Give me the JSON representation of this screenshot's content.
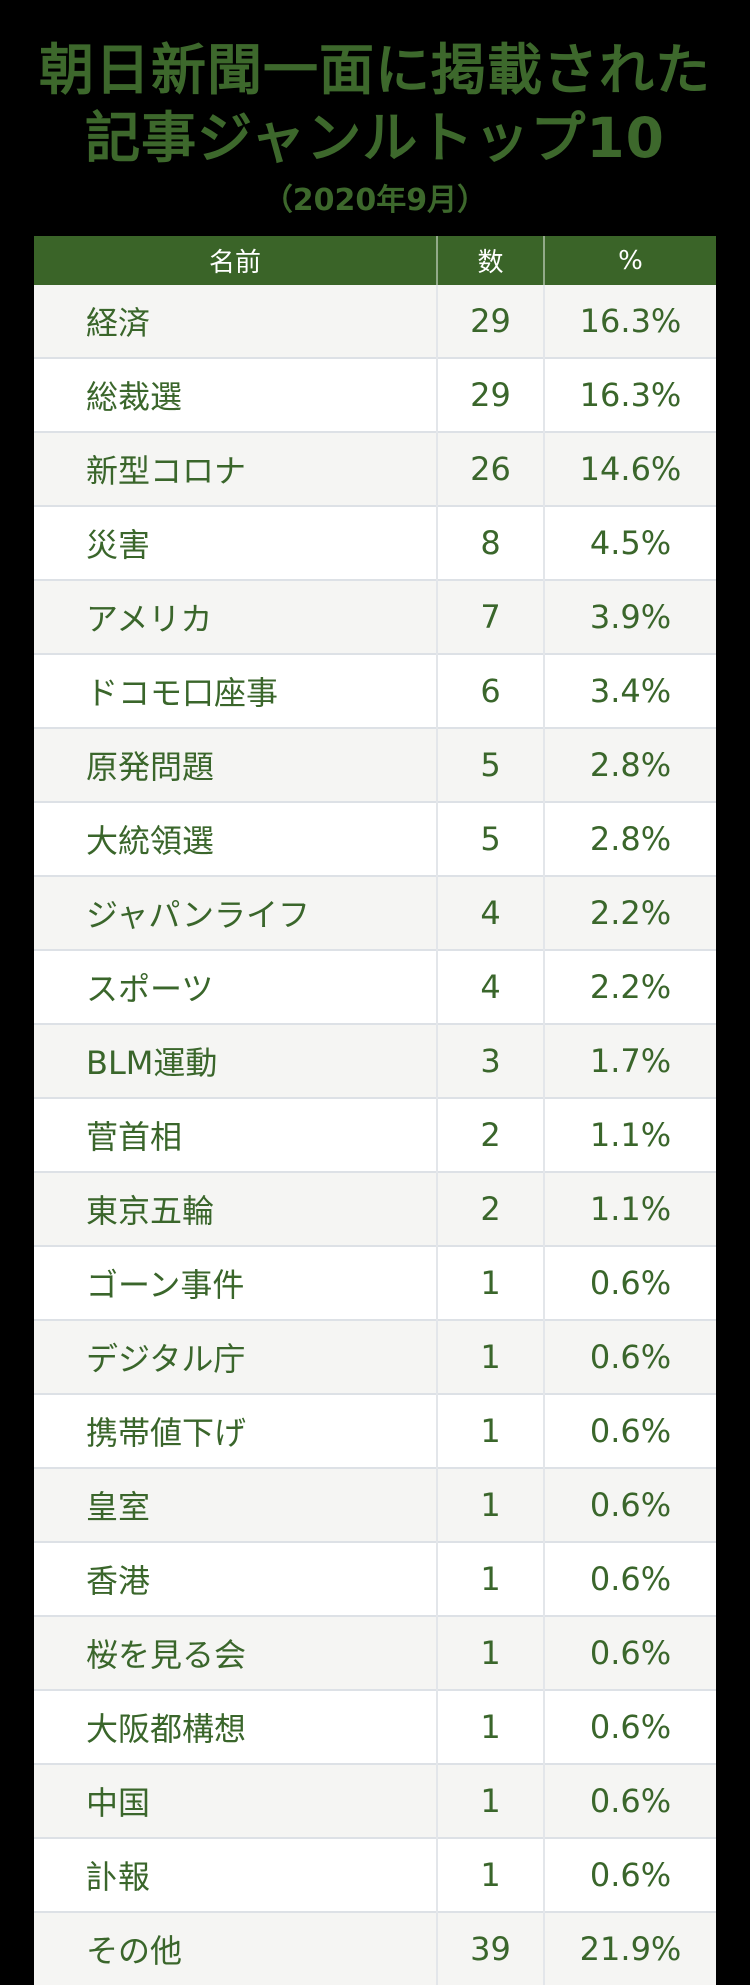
{
  "page": {
    "background_color": "#000000",
    "accent_green": "#3a6428",
    "text_green": "#3a662b"
  },
  "title": {
    "line1": "朝日新聞一面に掲載された",
    "line2": "記事ジャンルトップ10",
    "subtitle": "（2020年9月）",
    "color": "#3d682c"
  },
  "table": {
    "header": {
      "name": "名前",
      "count": "数",
      "percent": "%"
    },
    "header_bg": "#3a6428",
    "header_text_color": "#ffffff",
    "row_bg_odd": "#f5f5f3",
    "row_bg_even": "#ffffff",
    "rows": [
      {
        "name": "経済",
        "count": "29",
        "percent": "16.3%"
      },
      {
        "name": "総裁選",
        "count": "29",
        "percent": "16.3%"
      },
      {
        "name": "新型コロナ",
        "count": "26",
        "percent": "14.6%"
      },
      {
        "name": "災害",
        "count": "8",
        "percent": "4.5%"
      },
      {
        "name": "アメリカ",
        "count": "7",
        "percent": "3.9%"
      },
      {
        "name": "ドコモ口座事",
        "count": "6",
        "percent": "3.4%"
      },
      {
        "name": "原発問題",
        "count": "5",
        "percent": "2.8%"
      },
      {
        "name": "大統領選",
        "count": "5",
        "percent": "2.8%"
      },
      {
        "name": "ジャパンライフ",
        "count": "4",
        "percent": "2.2%"
      },
      {
        "name": "スポーツ",
        "count": "4",
        "percent": "2.2%"
      },
      {
        "name": "BLM運動",
        "count": "3",
        "percent": "1.7%"
      },
      {
        "name": "菅首相",
        "count": "2",
        "percent": "1.1%"
      },
      {
        "name": "東京五輪",
        "count": "2",
        "percent": "1.1%"
      },
      {
        "name": "ゴーン事件",
        "count": "1",
        "percent": "0.6%"
      },
      {
        "name": "デジタル庁",
        "count": "1",
        "percent": "0.6%"
      },
      {
        "name": "携帯値下げ",
        "count": "1",
        "percent": "0.6%"
      },
      {
        "name": "皇室",
        "count": "1",
        "percent": "0.6%"
      },
      {
        "name": "香港",
        "count": "1",
        "percent": "0.6%"
      },
      {
        "name": "桜を見る会",
        "count": "1",
        "percent": "0.6%"
      },
      {
        "name": "大阪都構想",
        "count": "1",
        "percent": "0.6%"
      },
      {
        "name": "中国",
        "count": "1",
        "percent": "0.6%"
      },
      {
        "name": "訃報",
        "count": "1",
        "percent": "0.6%"
      },
      {
        "name": "その他",
        "count": "39",
        "percent": "21.9%"
      }
    ]
  },
  "chart_data": {
    "type": "table",
    "title": "朝日新聞一面に掲載された記事ジャンルトップ10",
    "subtitle": "（2020年9月）",
    "columns": [
      "名前",
      "数",
      "%"
    ],
    "rows": [
      [
        "経済",
        29,
        "16.3%"
      ],
      [
        "総裁選",
        29,
        "16.3%"
      ],
      [
        "新型コロナ",
        26,
        "14.6%"
      ],
      [
        "災害",
        8,
        "4.5%"
      ],
      [
        "アメリカ",
        7,
        "3.9%"
      ],
      [
        "ドコモ口座事",
        6,
        "3.4%"
      ],
      [
        "原発問題",
        5,
        "2.8%"
      ],
      [
        "大統領選",
        5,
        "2.8%"
      ],
      [
        "ジャパンライフ",
        4,
        "2.2%"
      ],
      [
        "スポーツ",
        4,
        "2.2%"
      ],
      [
        "BLM運動",
        3,
        "1.7%"
      ],
      [
        "菅首相",
        2,
        "1.1%"
      ],
      [
        "東京五輪",
        2,
        "1.1%"
      ],
      [
        "ゴーン事件",
        1,
        "0.6%"
      ],
      [
        "デジタル庁",
        1,
        "0.6%"
      ],
      [
        "携帯値下げ",
        1,
        "0.6%"
      ],
      [
        "皇室",
        1,
        "0.6%"
      ],
      [
        "香港",
        1,
        "0.6%"
      ],
      [
        "桜を見る会",
        1,
        "0.6%"
      ],
      [
        "大阪都構想",
        1,
        "0.6%"
      ],
      [
        "中国",
        1,
        "0.6%"
      ],
      [
        "訃報",
        1,
        "0.6%"
      ],
      [
        "その他",
        39,
        "21.9%"
      ]
    ]
  }
}
